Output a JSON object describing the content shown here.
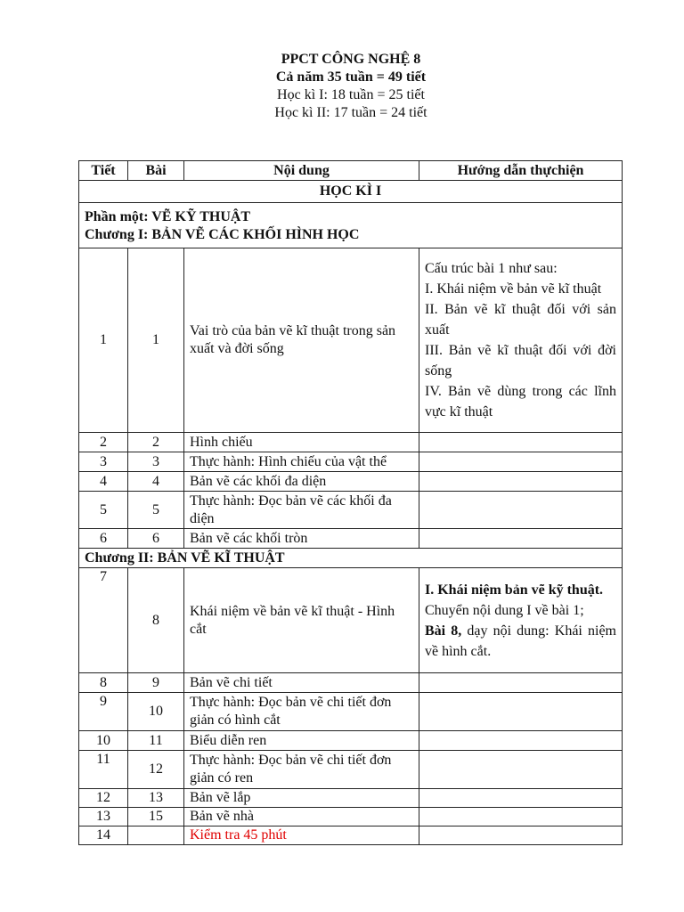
{
  "header": {
    "title": "PPCT CÔNG NGHỆ 8",
    "line2": "Cả năm 35 tuần = 49 tiết",
    "line3": "Học kì I: 18 tuần = 25 tiết",
    "line4": "Học kì II: 17 tuần = 24 tiết"
  },
  "table": {
    "columns": [
      "Tiết",
      "Bài",
      "Nội dung",
      "Hướng dẫn thựchiện"
    ],
    "semester": "HỌC KÌ I",
    "part": "Phần một: VẼ KỸ THUẬT",
    "chapter1": "Chương I: BẢN VẼ CÁC KHỐI HÌNH HỌC",
    "row1": {
      "tiet": "1",
      "bai": "1",
      "content": "Vai trò của bản vẽ kĩ thuật trong sản xuất và đời sống",
      "guide": [
        "Cấu trúc bài 1 như sau:",
        "I. Khái niệm về bản vẽ kĩ thuật",
        "II. Bản vẽ kĩ thuật đối với sản xuất",
        "III. Bản vẽ kĩ thuật đối với đời sống",
        "IV. Bản vẽ dùng trong các lĩnh vực kĩ thuật"
      ]
    },
    "rows_a": [
      {
        "tiet": "2",
        "bai": "2",
        "content": "Hình chiếu"
      },
      {
        "tiet": "3",
        "bai": "3",
        "content": "Thực hành: Hình chiếu của vật thể"
      },
      {
        "tiet": "4",
        "bai": "4",
        "content": "Bản vẽ các khối đa diện"
      },
      {
        "tiet": "5",
        "bai": "5",
        "content": "Thực hành: Đọc bản vẽ các khối đa diện"
      },
      {
        "tiet": "6",
        "bai": "6",
        "content": "Bản vẽ các khối tròn"
      }
    ],
    "chapter2": "Chương II: BẢN VẼ KĨ THUẬT",
    "row7": {
      "tiet": "7",
      "bai": "8",
      "content": "Khái niệm về bản vẽ kĩ thuật - Hình cắt",
      "guide_bold1": "I. Khái niệm bản vẽ kỹ thuật.",
      "guide2": "Chuyển nội dung I về bài 1;",
      "guide_bold3": "Bài 8,",
      "guide3": " dạy nội dung: Khái niệm về hình cắt."
    },
    "rows_b": [
      {
        "tiet": "8",
        "bai": "9",
        "content": "Bản vẽ chi tiết"
      },
      {
        "tiet": "9",
        "bai": "10",
        "content": "Thực hành: Đọc bản vẽ chi tiết đơn giản có hình cắt"
      },
      {
        "tiet": "10",
        "bai": "11",
        "content": "Biểu diễn ren"
      },
      {
        "tiet": "11",
        "bai": "12",
        "content": "Thực hành: Đọc bản vẽ chi tiết đơn giản có ren"
      },
      {
        "tiet": "12",
        "bai": "13",
        "content": "Bản vẽ lắp"
      },
      {
        "tiet": "13",
        "bai": "15",
        "content": "Bản vẽ nhà"
      },
      {
        "tiet": "14",
        "bai": "",
        "content": "Kiểm tra 45 phút"
      }
    ],
    "highlight_color": "#e00000"
  }
}
